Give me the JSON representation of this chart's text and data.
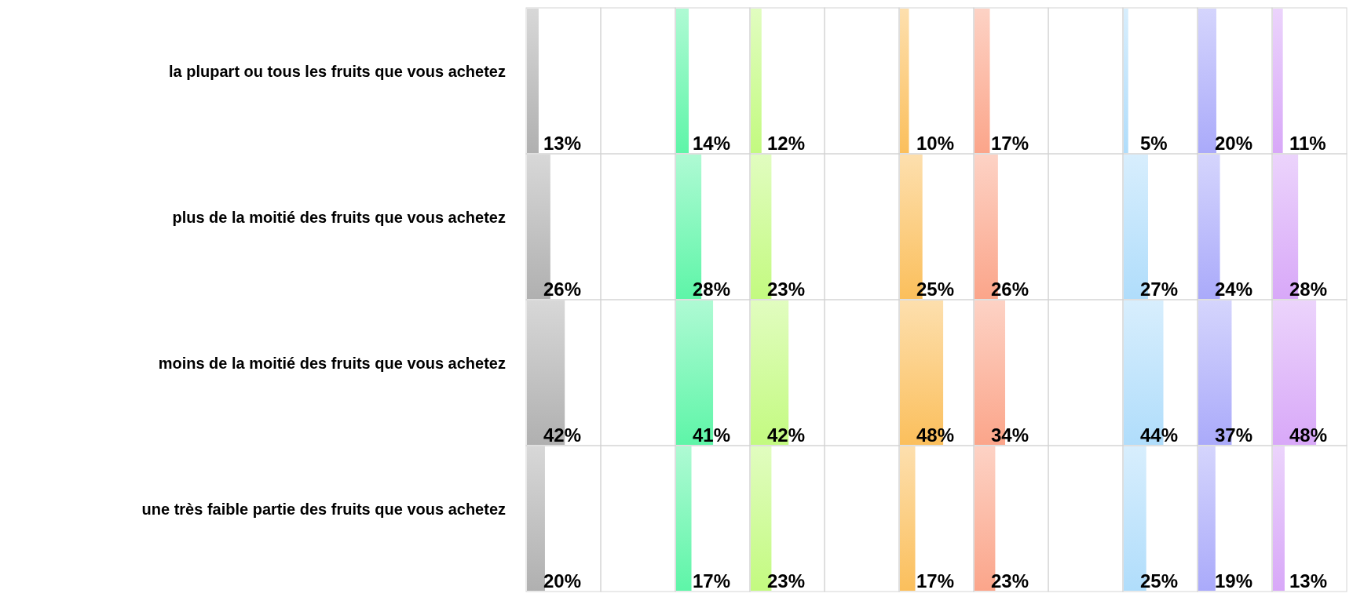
{
  "chart_data": [
    {
      "type": "bar",
      "orientation": "horizontal",
      "tick_labels": "y",
      "categories": [
        "la plupart ou tous les fruits que vous achetez",
        "plus de la moitié des fruits que vous achetez",
        "moins de la moitié des fruits que vous achetez",
        "une très faible partie des fruits que vous achetez"
      ],
      "color": "#b0b0b0",
      "values": [
        13,
        26,
        42,
        20
      ],
      "value_labels": [
        "13%",
        "26%",
        "42%",
        "20%"
      ]
    },
    {
      "type": "other"
    },
    {
      "type": "bar",
      "orientation": "horizontal",
      "tick_labels": false,
      "categories": [
        null,
        null,
        null,
        null
      ],
      "color": "#5ef5a8",
      "values": [
        14,
        28,
        41,
        17
      ],
      "value_labels": [
        "14%",
        "28%",
        "41%",
        "17%"
      ]
    },
    {
      "type": "bar",
      "orientation": "horizontal",
      "tick_labels": false,
      "categories": [
        null,
        null,
        null,
        null
      ],
      "color": "#c3fa80",
      "values": [
        12,
        23,
        42,
        23
      ],
      "value_labels": [
        "12%",
        "23%",
        "42%",
        "23%"
      ]
    },
    {
      "type": "other"
    },
    {
      "type": "bar",
      "orientation": "horizontal",
      "tick_labels": false,
      "categories": [
        null,
        null,
        null,
        null
      ],
      "color": "#fbbf5c",
      "values": [
        10,
        25,
        48,
        17
      ],
      "value_labels": [
        "10%",
        "25%",
        "48%",
        "17%"
      ]
    },
    {
      "type": "bar",
      "orientation": "horizontal",
      "tick_labels": false,
      "categories": [
        null,
        null,
        null,
        null
      ],
      "color": "#fba58a",
      "values": [
        17,
        26,
        34,
        23
      ],
      "value_labels": [
        "17%",
        "26%",
        "34%",
        "23%"
      ]
    },
    {
      "type": "other"
    },
    {
      "type": "bar",
      "orientation": "horizontal",
      "tick_labels": false,
      "categories": [
        null,
        null,
        null,
        null
      ],
      "color": "#b0ddfb",
      "values": [
        5,
        27,
        44,
        25
      ],
      "value_labels": [
        "5%",
        "27%",
        "44%",
        "25%"
      ]
    },
    {
      "type": "bar",
      "orientation": "horizontal",
      "tick_labels": false,
      "categories": [
        null,
        null,
        null,
        null
      ],
      "color": "#aaaafa",
      "values": [
        20,
        24,
        37,
        19
      ],
      "value_labels": [
        "20%",
        "24%",
        "37%",
        "19%"
      ]
    },
    {
      "type": "bar",
      "orientation": "horizontal",
      "tick_labels": false,
      "categories": [
        null,
        null,
        null,
        null
      ],
      "color": "#d8a8f8",
      "values": [
        11,
        28,
        48,
        13
      ],
      "value_labels": [
        "11%",
        "28%",
        "48%",
        "13%"
      ]
    }
  ]
}
